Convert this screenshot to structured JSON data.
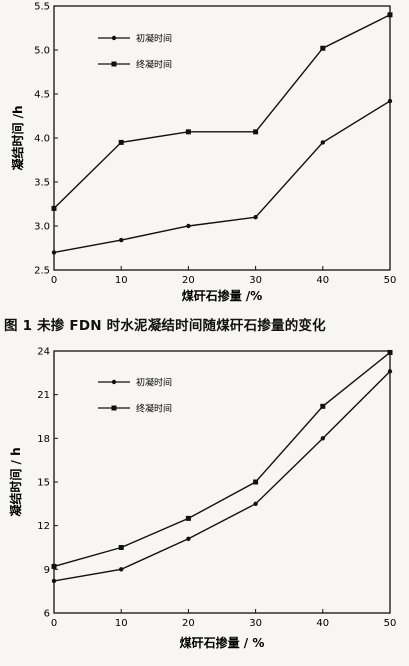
{
  "caption": "图 1  未掺 FDN 时水泥凝结时间随煤矸石掺量的变化",
  "chart_data": [
    {
      "type": "line",
      "title": "",
      "xlabel": "煤矸石掺量 /%",
      "ylabel": "凝结时间 /h",
      "x": [
        0,
        10,
        20,
        30,
        40,
        50
      ],
      "xticks": [
        "0",
        "10",
        "20",
        "30",
        "40",
        "50"
      ],
      "yticks": [
        "2.5",
        "3.0",
        "3.5",
        "4.0",
        "4.5",
        "5.0",
        "5.5"
      ],
      "xlim": [
        0,
        50
      ],
      "ylim": [
        2.5,
        5.5
      ],
      "grid": false,
      "legend": "top-left",
      "series": [
        {
          "name": "初凝时间",
          "marker": "circle",
          "values": [
            2.7,
            2.84,
            3.0,
            3.1,
            3.95,
            4.42
          ]
        },
        {
          "name": "终凝时间",
          "marker": "square",
          "values": [
            3.2,
            3.95,
            4.07,
            4.07,
            5.02,
            5.4
          ]
        }
      ]
    },
    {
      "type": "line",
      "title": "",
      "xlabel": "煤矸石掺量 / %",
      "ylabel": "凝结时间 / h",
      "x": [
        0,
        10,
        20,
        30,
        40,
        50
      ],
      "xticks": [
        "0",
        "10",
        "20",
        "30",
        "40",
        "50"
      ],
      "yticks": [
        "6",
        "9",
        "12",
        "15",
        "18",
        "21",
        "24"
      ],
      "xlim": [
        0,
        50
      ],
      "ylim": [
        6,
        24
      ],
      "grid": false,
      "legend": "top-left",
      "series": [
        {
          "name": "初凝时间",
          "marker": "circle",
          "values": [
            8.2,
            9.0,
            11.1,
            13.5,
            18.0,
            22.6
          ]
        },
        {
          "name": "终凝时间",
          "marker": "square",
          "values": [
            9.2,
            10.5,
            12.5,
            15.0,
            20.2,
            23.9
          ]
        }
      ]
    }
  ]
}
